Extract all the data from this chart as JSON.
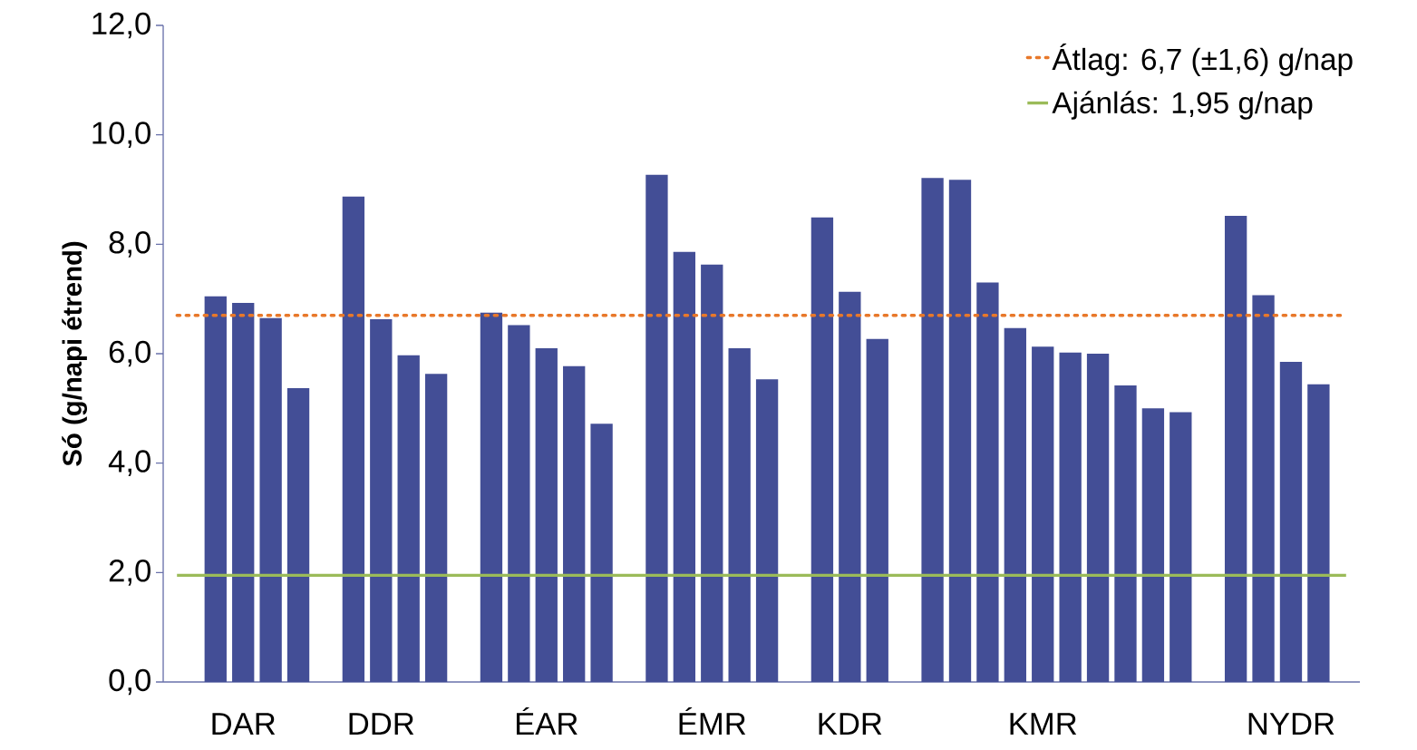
{
  "chart_data": {
    "type": "bar",
    "ylabel": "Só (g/napi étrend)",
    "categories": [
      null,
      "DAR",
      null,
      null,
      null,
      null,
      "DDR",
      null,
      null,
      null,
      null,
      null,
      "ÉAR",
      null,
      null,
      null,
      null,
      null,
      "ÉMR",
      null,
      null,
      null,
      null,
      "KDR",
      null,
      null,
      null,
      null,
      null,
      null,
      "KMR",
      null,
      null,
      null,
      null,
      null,
      null,
      null,
      null,
      "NYDR",
      null,
      null
    ],
    "values": [
      7.05,
      6.93,
      6.65,
      5.37,
      null,
      8.87,
      6.63,
      5.97,
      5.63,
      null,
      6.75,
      6.52,
      6.1,
      5.77,
      4.72,
      null,
      9.27,
      7.86,
      7.63,
      6.1,
      5.53,
      null,
      8.49,
      7.13,
      6.27,
      null,
      9.21,
      9.18,
      7.3,
      6.47,
      6.13,
      6.02,
      6.0,
      5.42,
      5.0,
      4.93,
      null,
      8.52,
      7.07,
      5.85,
      5.44,
      null
    ],
    "color": "#434e96",
    "ylim": [
      0,
      12
    ],
    "yticks": [
      {
        "value": 0,
        "label": "0,0"
      },
      {
        "value": 2,
        "label": "2,0"
      },
      {
        "value": 4,
        "label": "4,0"
      },
      {
        "value": 6,
        "label": "6,0"
      },
      {
        "value": 8,
        "label": "8,0"
      },
      {
        "value": 10,
        "label": "10,0"
      },
      {
        "value": 12,
        "label": "12,0"
      }
    ],
    "ref_lines": [
      {
        "axis": "y",
        "value": 6.7,
        "label": "Átlag: 6,7 (±1,6) g/nap",
        "color": "#e8782a",
        "line_style": "dotted"
      },
      {
        "axis": "y",
        "value": 1.95,
        "label": "Ajánlás: 1,95 g/nap",
        "color": "#9bbb59",
        "line_style": "solid"
      }
    ],
    "legend": "top right"
  }
}
